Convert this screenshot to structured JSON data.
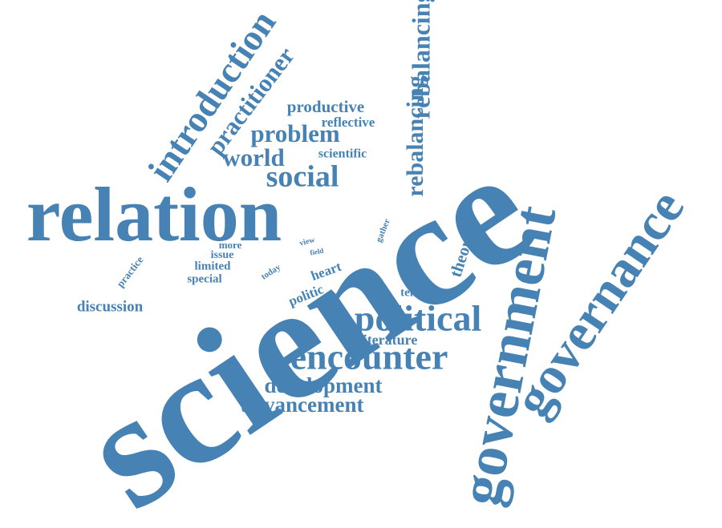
{
  "color": "#4682b4",
  "words": {
    "science": "science",
    "relation": "relation",
    "government": "government",
    "governance": "governance",
    "introduction": "introduction",
    "practitioner": "practitioner",
    "rebalancing_top": "rebalancing",
    "rebalancing_mid": "rebalancing",
    "productive": "productive",
    "reflective": "reflective",
    "problem": "problem",
    "world": "world",
    "scientific": "scientific",
    "social": "social",
    "political": "political",
    "encounter": "encounter",
    "development": "development",
    "advancement": "advancement",
    "literature": "literature",
    "discussion": "discussion",
    "theory": "theory",
    "tension": "tension",
    "heart": "heart",
    "politic": "politic",
    "today": "today",
    "more": "more",
    "issue": "issue",
    "limited": "limited",
    "special": "special",
    "practice": "practice",
    "view": "view",
    "field": "field",
    "gather": "gather"
  }
}
